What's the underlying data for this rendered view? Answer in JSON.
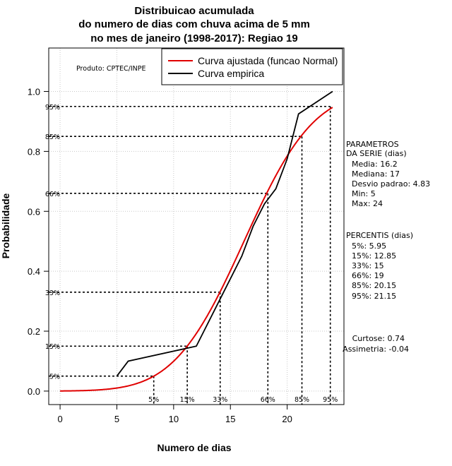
{
  "title_lines": [
    "Distribuicao acumulada",
    "do numero de dias com chuva acima de 5 mm",
    "no mes de janeiro (1998-2017): Regiao 19"
  ],
  "credit": "Produto: CPTEC/INPE",
  "side_panel": {
    "params_lines": [
      "PARAMETROS",
      "DA SERIE (dias)",
      "Media: 16.2",
      "Mediana: 17",
      "Desvio padrao: 4.83",
      "Min: 5",
      "Max: 24"
    ],
    "percentis_lines": [
      "PERCENTIS (dias)",
      "5%: 5.95",
      "15%: 12.85",
      "33%: 15",
      "66%: 19",
      "85%: 20.15",
      "95%: 21.15"
    ],
    "shape_lines": [
      "Curtose: 0.74",
      "Assimetria: -0.04"
    ]
  },
  "chart_data": {
    "type": "line",
    "xlabel": "Numero de dias",
    "ylabel": "Probabilidade",
    "xlim": [
      -1,
      25
    ],
    "ylim": [
      -0.045,
      1.145
    ],
    "xticks": [
      0,
      5,
      10,
      15,
      20
    ],
    "yticks": [
      0.0,
      0.2,
      0.4,
      0.6,
      0.8,
      1.0
    ],
    "ytick_labels": [
      "0.0",
      "0.2",
      "0.4",
      "0.6",
      "0.8",
      "1.0"
    ],
    "grid": true,
    "legend_position": "top-right",
    "series": [
      {
        "name": "Curva ajustada (funcao Normal)",
        "color": "#e00000",
        "kind": "normal_cdf",
        "mean": 16.2,
        "sd": 4.83,
        "x_range": [
          0,
          24
        ]
      },
      {
        "name": "Curva empirica",
        "color": "#000000",
        "kind": "points",
        "x": [
          5,
          6,
          12,
          14,
          16,
          17,
          18,
          19,
          20,
          21,
          22,
          24
        ],
        "y": [
          0.05,
          0.1,
          0.15,
          0.3,
          0.45,
          0.55,
          0.625,
          0.675,
          0.775,
          0.925,
          0.95,
          1.0
        ]
      }
    ],
    "percentile_lines": [
      {
        "label": "5%",
        "p": 0.05,
        "x": 8.25
      },
      {
        "label": "15%",
        "p": 0.15,
        "x": 11.2
      },
      {
        "label": "33%",
        "p": 0.33,
        "x": 14.1
      },
      {
        "label": "66%",
        "p": 0.66,
        "x": 18.3
      },
      {
        "label": "85%",
        "p": 0.85,
        "x": 21.3
      },
      {
        "label": "95%",
        "p": 0.95,
        "x": 23.8
      }
    ]
  }
}
